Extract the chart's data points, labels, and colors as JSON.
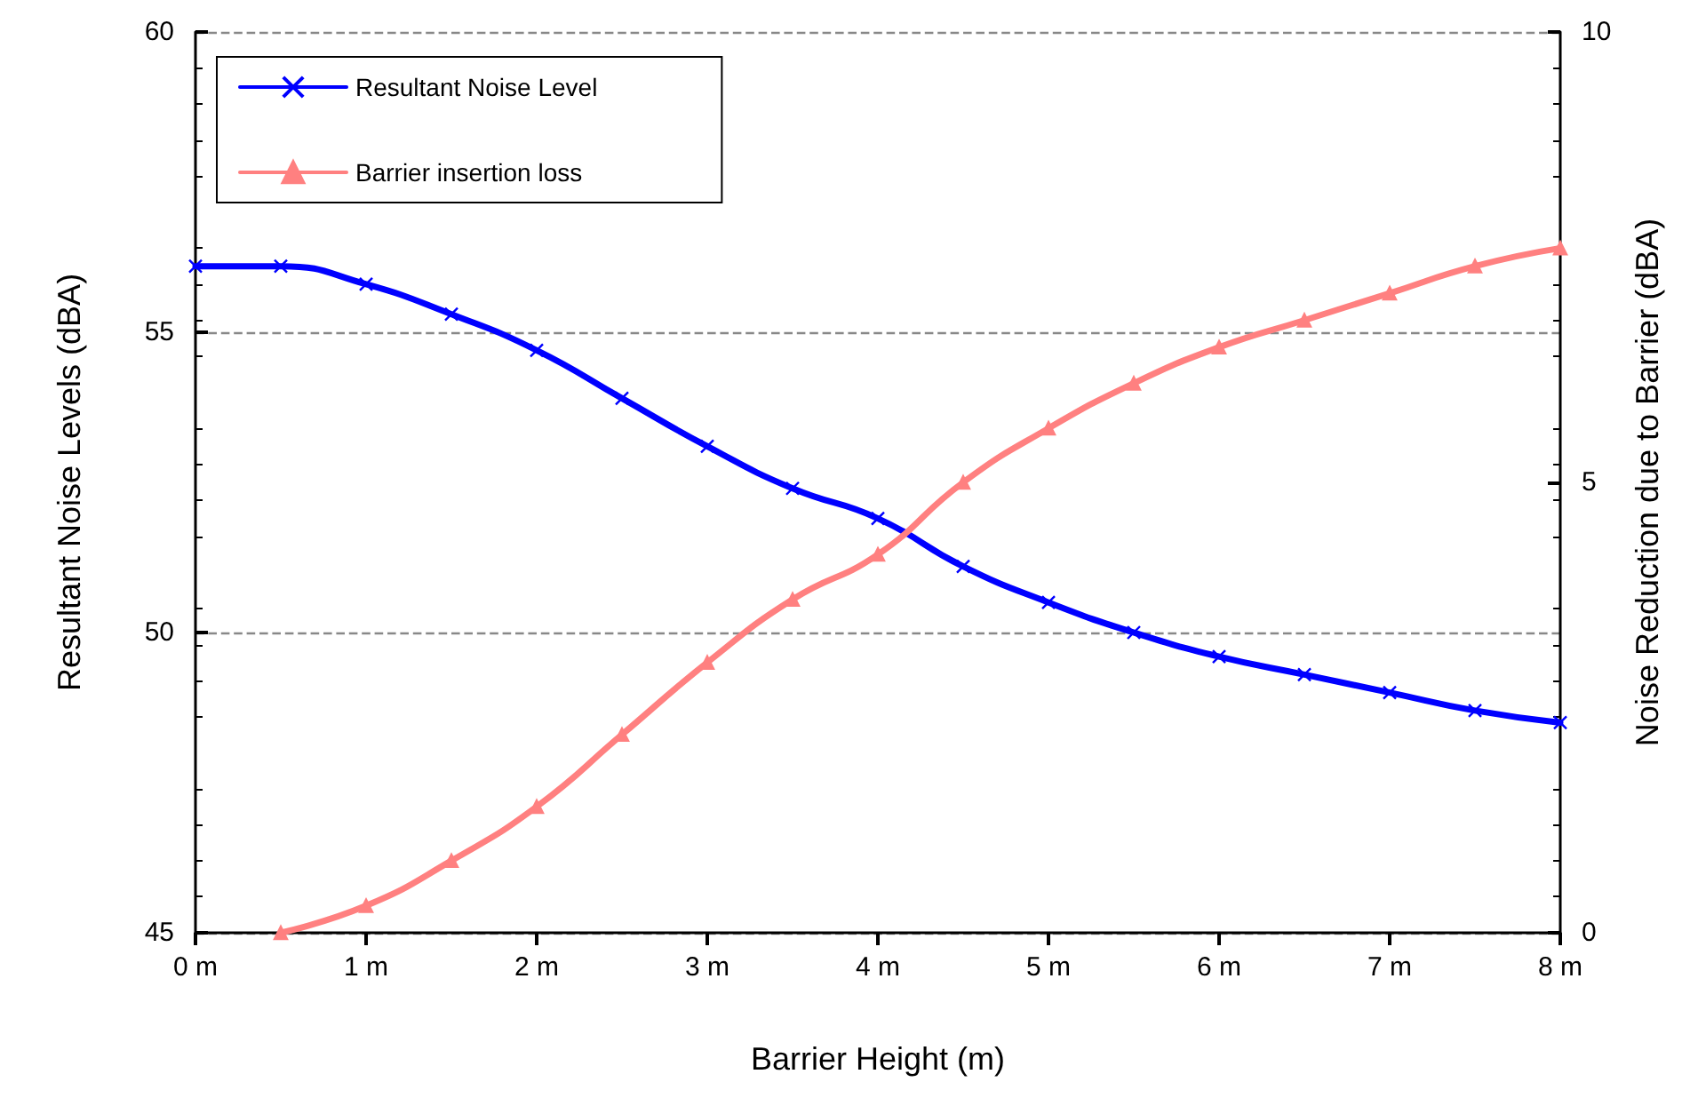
{
  "chart_data": {
    "type": "line",
    "xlabel": "Barrier Height (m)",
    "ylabel": "Resultant Noise Levels (dBA)",
    "y2label": "Noise Reduction due to Barrier (dBA)",
    "xlim": [
      0,
      8
    ],
    "xticks": [
      {
        "value": 0,
        "label": "0 m"
      },
      {
        "value": 1,
        "label": "1 m"
      },
      {
        "value": 2,
        "label": "2 m"
      },
      {
        "value": 3,
        "label": "3 m"
      },
      {
        "value": 4,
        "label": "4 m"
      },
      {
        "value": 5,
        "label": "5 m"
      },
      {
        "value": 6,
        "label": "6 m"
      },
      {
        "value": 7,
        "label": "7 m"
      },
      {
        "value": 8,
        "label": "8 m"
      }
    ],
    "ylim": [
      45,
      60
    ],
    "yticks": [
      45,
      50,
      55,
      60
    ],
    "y2lim": [
      0,
      10
    ],
    "y2ticks": [
      0,
      5,
      10
    ],
    "grid": "y",
    "legend": "top left",
    "line_style": "solid",
    "series": [
      {
        "name": "Resultant Noise Level",
        "color": "#0000ff",
        "marker": "cross",
        "x": [
          0,
          0.5,
          1,
          1.5,
          2,
          2.5,
          3,
          3.5,
          4,
          4.5,
          5,
          5.5,
          6,
          6.5,
          7,
          7.5,
          8
        ],
        "values": [
          56.1,
          56.1,
          55.8,
          55.3,
          54.7,
          53.9,
          53.1,
          52.4,
          51.9,
          51.1,
          50.5,
          50.0,
          49.6,
          49.3,
          49.0,
          48.7,
          48.5
        ]
      },
      {
        "name": "Barrier insertion loss",
        "color": "#ff8080",
        "marker": "triangle",
        "axis": "y2",
        "x": [
          0.5,
          1,
          1.5,
          2,
          2.5,
          3,
          3.5,
          4,
          4.5,
          5,
          5.5,
          6,
          6.5,
          7,
          7.5,
          8
        ],
        "values": [
          0,
          0.3,
          0.8,
          1.4,
          2.2,
          3.0,
          3.7,
          4.2,
          5.0,
          5.6,
          6.1,
          6.5,
          6.8,
          7.1,
          7.4,
          7.6
        ]
      }
    ]
  }
}
